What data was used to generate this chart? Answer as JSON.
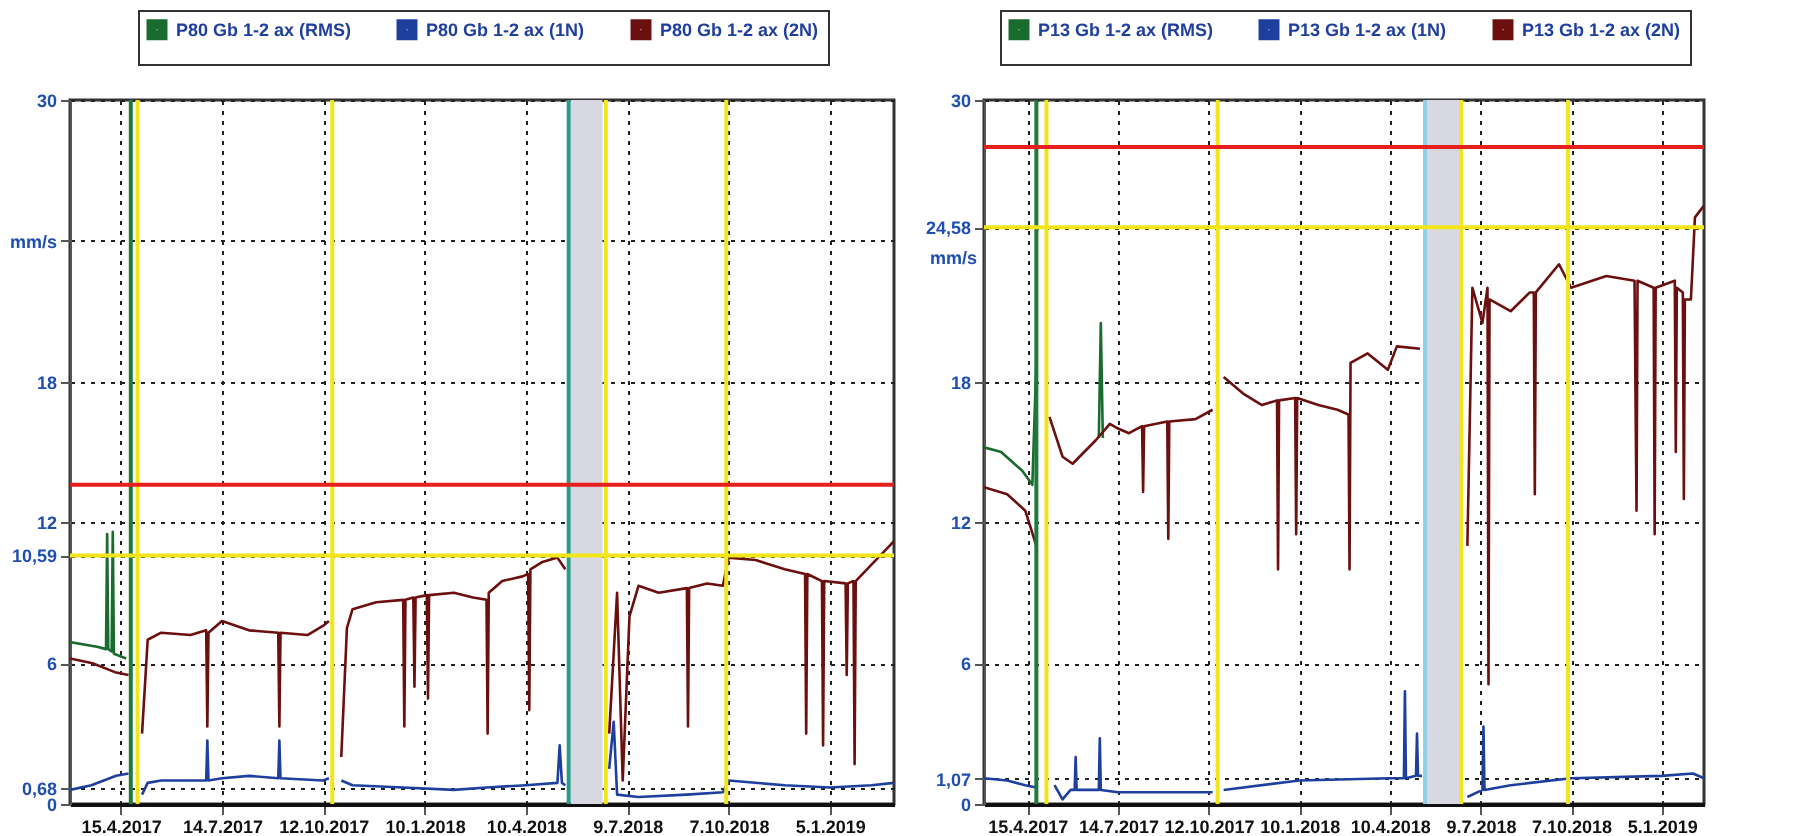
{
  "chart_data": [
    {
      "type": "line",
      "legend": "top",
      "grid": true,
      "xlim": [
        "2017-03-01",
        "2019-03-03"
      ],
      "xticks": [
        {
          "value": "2017-04-15",
          "label": "15.4.2017"
        },
        {
          "value": "2017-07-14",
          "label": "14.7.2017"
        },
        {
          "value": "2017-10-12",
          "label": "12.10.2017"
        },
        {
          "value": "2018-01-10",
          "label": "10.1.2018"
        },
        {
          "value": "2018-04-10",
          "label": "10.4.2018"
        },
        {
          "value": "2018-07-09",
          "label": "9.7.2018"
        },
        {
          "value": "2018-10-07",
          "label": "7.10.2018"
        },
        {
          "value": "2019-01-05",
          "label": "5.1.2019"
        }
      ],
      "ylim": [
        0,
        30
      ],
      "yticks": [
        0,
        {
          "value": 0.68,
          "label": "0,68"
        },
        6,
        {
          "value": 10.59,
          "label": "10,59"
        },
        12,
        18,
        {
          "value": 24,
          "label": "mm/s"
        },
        30
      ],
      "series": [
        {
          "name": "P80 Gb 1-2 ax (RMS)",
          "color": "#1a6b2e",
          "x": [
            "2017-03-01",
            "2017-03-25",
            "2017-04-02",
            "2017-04-03",
            "2017-04-04",
            "2017-04-07",
            "2017-04-08",
            "2017-04-09",
            "2017-04-20"
          ],
          "values": [
            6.9,
            6.7,
            6.6,
            11.5,
            6.6,
            6.5,
            11.6,
            6.4,
            6.2
          ]
        },
        {
          "name": "P80 Gb 1-2 ax (1N)",
          "color": "#1f3f9e",
          "x": [
            "2017-03-01",
            "2017-03-20",
            "2017-04-11",
            "2017-04-22",
            "2017-04-27",
            "2017-05-04",
            "2017-05-09",
            "2017-05-21",
            "2017-06-30",
            "2017-07-01",
            "2017-07-02",
            "2017-07-14",
            "2017-08-07",
            "2017-09-02",
            "2017-09-03",
            "2017-09-04",
            "2017-10-12",
            "2017-10-17",
            "2017-10-20",
            "2017-10-28",
            "2017-11-07",
            "2017-12-22",
            "2018-02-05",
            "2018-03-06",
            "2018-04-10",
            "2018-05-08",
            "2018-05-10",
            "2018-05-12",
            "2018-05-15",
            "2018-05-19",
            "2018-06-23",
            "2018-06-27",
            "2018-06-30",
            "2018-07-19",
            "2018-08-31",
            "2018-10-02",
            "2018-10-07",
            "2018-11-26",
            "2019-01-05",
            "2019-02-11",
            "2019-03-03"
          ],
          "values": [
            0.6,
            0.8,
            1.2,
            1.3,
            null,
            0.4,
            0.9,
            1.0,
            1.0,
            2.7,
            1.0,
            1.1,
            1.2,
            1.1,
            2.7,
            1.1,
            1.0,
            1.1,
            null,
            1.0,
            0.8,
            0.7,
            0.6,
            0.7,
            0.8,
            0.9,
            2.5,
            0.9,
            0.8,
            null,
            1.5,
            3.5,
            0.4,
            0.3,
            0.4,
            0.5,
            1.0,
            0.8,
            0.7,
            0.8,
            0.9
          ]
        },
        {
          "name": "P80 Gb 1-2 ax (2N)",
          "color": "#6b0f0f",
          "x": [
            "2017-03-01",
            "2017-03-21",
            "2017-04-11",
            "2017-04-22",
            "2017-04-27",
            "2017-05-04",
            "2017-05-09",
            "2017-05-21",
            "2017-06-16",
            "2017-06-30",
            "2017-07-01",
            "2017-07-02",
            "2017-07-14",
            "2017-08-07",
            "2017-09-02",
            "2017-09-03",
            "2017-09-04",
            "2017-09-28",
            "2017-10-12",
            "2017-10-17",
            "2017-10-20",
            "2017-10-28",
            "2017-11-02",
            "2017-11-07",
            "2017-11-28",
            "2017-12-22",
            "2017-12-23",
            "2017-12-24",
            "2017-12-31",
            "2018-01-01",
            "2018-01-02",
            "2018-01-12",
            "2018-01-13",
            "2018-01-14",
            "2018-02-05",
            "2018-02-22",
            "2018-03-06",
            "2018-03-07",
            "2018-03-08",
            "2018-03-20",
            "2018-04-07",
            "2018-04-12",
            "2018-04-13",
            "2018-04-14",
            "2018-04-24",
            "2018-05-08",
            "2018-05-15",
            "2018-05-19",
            "2018-06-23",
            "2018-06-30",
            "2018-07-05",
            "2018-07-11",
            "2018-07-19",
            "2018-08-06",
            "2018-08-31",
            "2018-09-01",
            "2018-09-02",
            "2018-09-18",
            "2018-10-02",
            "2018-10-07",
            "2018-10-31",
            "2018-11-26",
            "2018-12-14",
            "2018-12-15",
            "2018-12-16",
            "2018-12-29",
            "2018-12-30",
            "2018-12-31",
            "2019-01-19",
            "2019-01-20",
            "2019-01-21",
            "2019-01-26",
            "2019-01-27",
            "2019-01-28",
            "2019-02-11",
            "2019-02-23",
            "2019-03-03"
          ],
          "values": [
            6.2,
            6.0,
            5.6,
            5.5,
            null,
            3.0,
            7.0,
            7.3,
            7.2,
            7.4,
            3.3,
            7.3,
            7.8,
            7.4,
            7.3,
            3.3,
            7.3,
            7.2,
            7.6,
            7.8,
            null,
            2.0,
            7.5,
            8.3,
            8.6,
            8.7,
            3.3,
            8.7,
            8.8,
            5.0,
            8.8,
            8.9,
            4.5,
            8.9,
            9.0,
            8.8,
            8.7,
            3.0,
            9.0,
            9.5,
            9.7,
            9.8,
            4.0,
            10.0,
            10.3,
            10.5,
            10.0,
            null,
            3.0,
            9.0,
            1.0,
            8.0,
            9.3,
            9.0,
            9.2,
            3.3,
            9.2,
            9.4,
            9.3,
            10.5,
            10.4,
            10.0,
            9.8,
            3.0,
            9.8,
            9.5,
            2.5,
            9.5,
            9.4,
            5.5,
            9.4,
            9.5,
            1.7,
            9.5,
            10.2,
            10.8,
            11.2
          ]
        }
      ],
      "ref_lines": [
        {
          "axis": "y",
          "value": 13.6,
          "color": "#e8201c"
        },
        {
          "axis": "y",
          "value": 10.59,
          "color": "#f2e61a"
        },
        {
          "axis": "x",
          "value": "2017-04-24",
          "color": "#1e7a3a"
        },
        {
          "axis": "x",
          "value": "2017-04-30",
          "color": "#f2e61a"
        },
        {
          "axis": "x",
          "value": "2017-10-20",
          "color": "#f2e61a"
        },
        {
          "axis": "x",
          "value": "2018-05-18",
          "color": "#2a9a8a"
        },
        {
          "axis": "x",
          "value": "2018-06-20",
          "color": "#f2e61a"
        },
        {
          "axis": "x",
          "value": "2018-10-05",
          "color": "#f2e61a"
        }
      ],
      "bands": [
        {
          "axis": "x",
          "from": "2018-05-20",
          "to": "2018-06-17",
          "color": "#d8d8e2"
        }
      ]
    },
    {
      "type": "line",
      "legend": "top",
      "grid": true,
      "ylabel": "mm/s",
      "xlim": [
        "2017-03-03",
        "2019-02-16"
      ],
      "xticks": [
        {
          "value": "2017-04-15",
          "label": "15.4.2017"
        },
        {
          "value": "2017-07-14",
          "label": "14.7.2017"
        },
        {
          "value": "2017-10-12",
          "label": "12.10.2017"
        },
        {
          "value": "2018-01-10",
          "label": "10.1.2018"
        },
        {
          "value": "2018-04-10",
          "label": "10.4.2018"
        },
        {
          "value": "2018-07-09",
          "label": "9.7.2018"
        },
        {
          "value": "2018-10-07",
          "label": "7.10.2018"
        },
        {
          "value": "2019-01-05",
          "label": "5.1.2019"
        }
      ],
      "ylim": [
        0,
        30
      ],
      "yticks": [
        0,
        {
          "value": 1.07,
          "label": "1,07"
        },
        6,
        12,
        18,
        {
          "value": 24.58,
          "label": "24,58"
        },
        30
      ],
      "series": [
        {
          "name": "P13 Gb 1-2 ax (RMS)",
          "color": "#1a6b2e",
          "x": [
            "2017-03-03",
            "2017-03-20",
            "2017-04-10",
            "2017-04-20",
            "2017-04-24",
            "2017-04-28",
            "2017-06-25",
            "2017-06-27",
            "2017-06-29"
          ],
          "values": [
            15.2,
            15.0,
            14.2,
            13.6,
            18.9,
            null,
            15.6,
            20.5,
            15.6
          ]
        },
        {
          "name": "P13 Gb 1-2 ax (1N)",
          "color": "#1f3f9e",
          "x": [
            "2017-03-03",
            "2017-03-26",
            "2017-04-13",
            "2017-04-24",
            "2017-04-28",
            "2017-05-12",
            "2017-05-20",
            "2017-05-28",
            "2017-06-01",
            "2017-06-02",
            "2017-06-03",
            "2017-06-25",
            "2017-06-26",
            "2017-06-27",
            "2017-07-14",
            "2017-10-16",
            "2017-10-20",
            "2017-10-27",
            "2018-01-10",
            "2018-04-10",
            "2018-04-24",
            "2018-04-25",
            "2018-04-26",
            "2018-05-06",
            "2018-05-07",
            "2018-05-08",
            "2018-05-12",
            "2018-05-14",
            "2018-06-26",
            "2018-07-11",
            "2018-07-12",
            "2018-07-13",
            "2018-08-08",
            "2018-10-07",
            "2019-01-05",
            "2019-02-05",
            "2019-02-16"
          ],
          "values": [
            1.1,
            1.0,
            0.8,
            0.7,
            null,
            0.8,
            0.2,
            0.6,
            0.6,
            2.0,
            0.6,
            0.6,
            2.8,
            0.6,
            0.5,
            0.5,
            null,
            0.6,
            1.0,
            1.1,
            1.1,
            4.8,
            1.1,
            1.2,
            3.0,
            1.2,
            1.2,
            null,
            0.3,
            0.6,
            3.3,
            0.6,
            0.8,
            1.1,
            1.2,
            1.3,
            1.1
          ]
        },
        {
          "name": "P13 Gb 1-2 ax (2N)",
          "color": "#6b0f0f",
          "x": [
            "2017-03-03",
            "2017-03-26",
            "2017-04-13",
            "2017-04-24",
            "2017-04-28",
            "2017-05-07",
            "2017-05-20",
            "2017-05-30",
            "2017-06-22",
            "2017-07-06",
            "2017-07-14",
            "2017-07-25",
            "2017-08-07",
            "2017-08-08",
            "2017-08-09",
            "2017-09-01",
            "2017-09-02",
            "2017-09-03",
            "2017-09-29",
            "2017-10-16",
            "2017-10-20",
            "2017-10-27",
            "2017-11-15",
            "2017-12-04",
            "2017-12-19",
            "2017-12-20",
            "2017-12-21",
            "2018-01-06",
            "2018-01-07",
            "2018-01-08",
            "2018-01-29",
            "2018-02-17",
            "2018-02-28",
            "2018-03-01",
            "2018-03-02",
            "2018-03-19",
            "2018-04-08",
            "2018-04-17",
            "2018-05-10",
            "2018-05-14",
            "2018-06-26",
            "2018-07-01",
            "2018-07-11",
            "2018-07-16",
            "2018-07-17",
            "2018-07-18",
            "2018-08-08",
            "2018-08-27",
            "2018-08-31",
            "2018-09-01",
            "2018-09-02",
            "2018-09-25",
            "2018-10-07",
            "2018-11-11",
            "2018-12-09",
            "2018-12-11",
            "2018-12-12",
            "2018-12-28",
            "2018-12-29",
            "2018-12-30",
            "2019-01-18",
            "2019-01-19",
            "2019-01-20",
            "2019-01-26",
            "2019-01-27",
            "2019-01-28",
            "2019-02-03",
            "2019-02-07",
            "2019-02-16"
          ],
          "values": [
            13.5,
            13.2,
            12.5,
            11.0,
            null,
            16.5,
            14.8,
            14.5,
            15.5,
            16.2,
            16.0,
            15.8,
            16.1,
            13.3,
            16.1,
            16.3,
            11.3,
            16.3,
            16.4,
            16.8,
            null,
            18.2,
            17.5,
            17.0,
            17.2,
            10.0,
            17.2,
            17.3,
            11.5,
            17.3,
            17.0,
            16.8,
            16.6,
            10.0,
            18.8,
            19.2,
            18.5,
            19.5,
            19.4,
            null,
            11.0,
            22.0,
            20.5,
            22.0,
            5.1,
            21.5,
            21.0,
            21.8,
            21.8,
            13.2,
            21.8,
            23.0,
            22.0,
            22.5,
            22.3,
            12.5,
            22.3,
            22.0,
            11.5,
            22.0,
            22.3,
            15.0,
            22.0,
            21.8,
            13.0,
            21.5,
            21.5,
            25.0,
            25.5
          ]
        }
      ],
      "ref_lines": [
        {
          "axis": "y",
          "value": 28.0,
          "color": "#e8201c"
        },
        {
          "axis": "y",
          "value": 24.58,
          "color": "#f2e61a"
        },
        {
          "axis": "x",
          "value": "2017-04-24",
          "color": "#1e7a3a"
        },
        {
          "axis": "x",
          "value": "2017-05-04",
          "color": "#f2e61a"
        },
        {
          "axis": "x",
          "value": "2017-10-21",
          "color": "#f2e61a"
        },
        {
          "axis": "x",
          "value": "2018-05-15",
          "color": "#8fd0e8"
        },
        {
          "axis": "x",
          "value": "2018-06-20",
          "color": "#f2e61a"
        },
        {
          "axis": "x",
          "value": "2018-10-04",
          "color": "#f2e61a"
        }
      ],
      "bands": [
        {
          "axis": "x",
          "from": "2018-05-15",
          "to": "2018-06-20",
          "color": "#d8d8e2"
        }
      ]
    }
  ]
}
